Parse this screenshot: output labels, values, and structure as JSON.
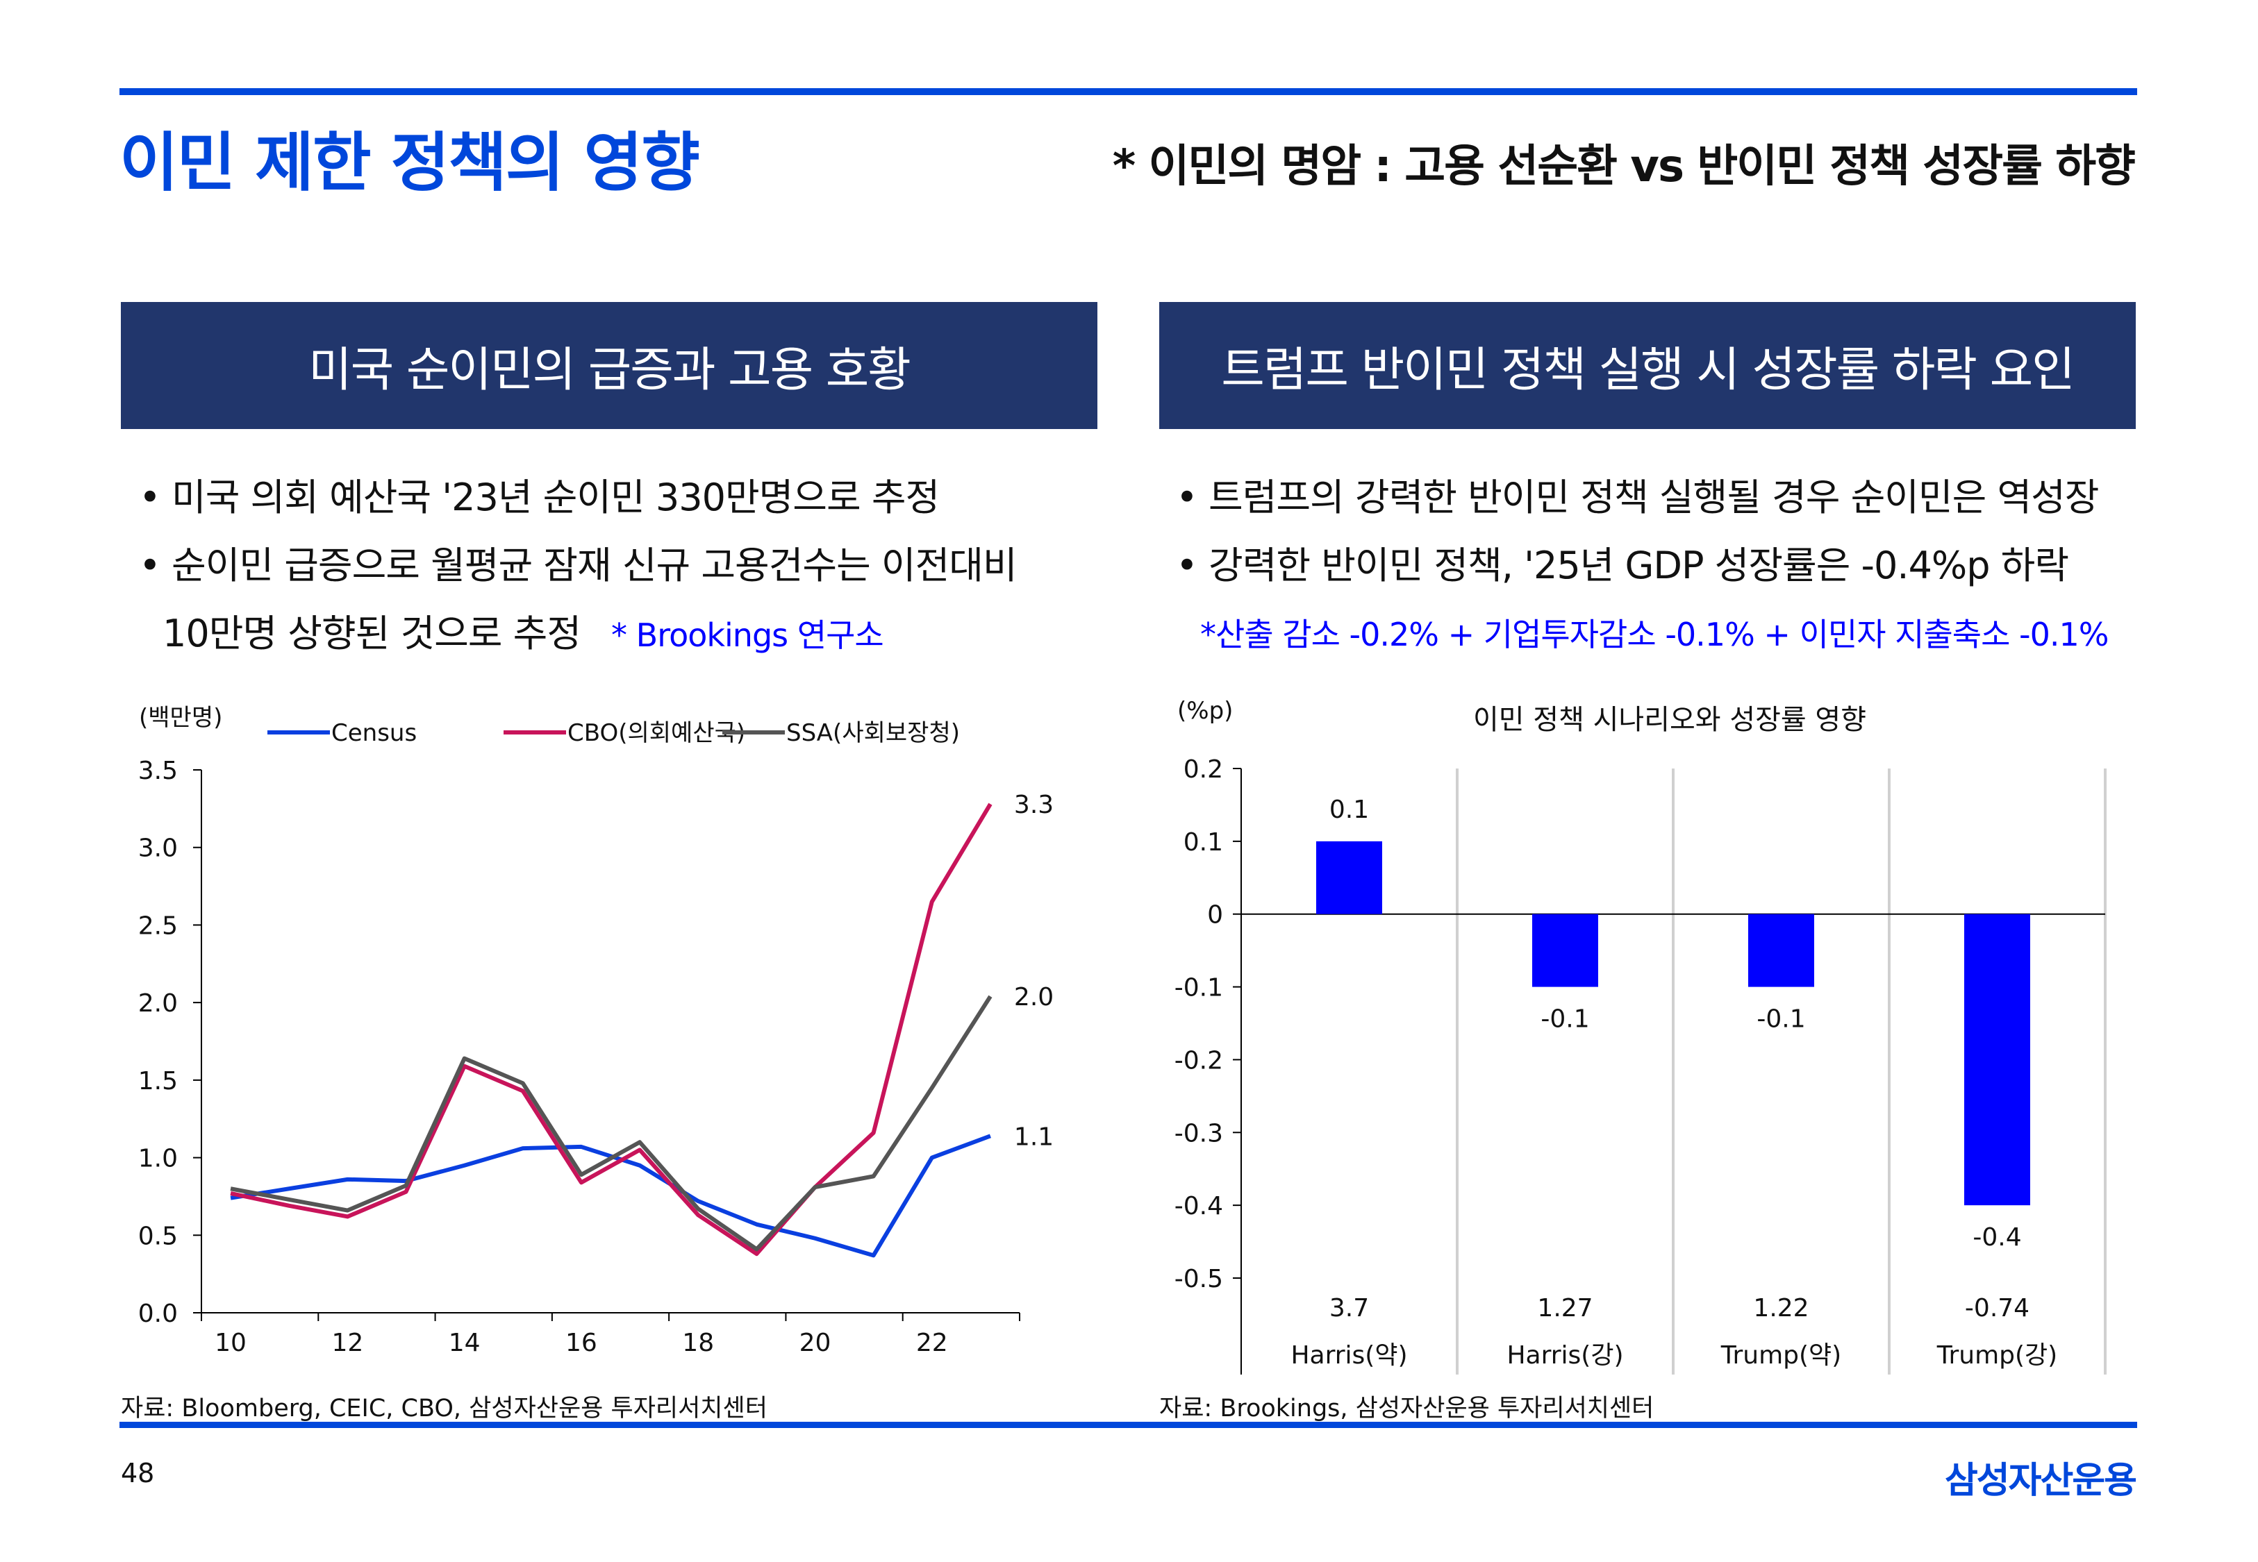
{
  "header": {
    "title": "이민 제한 정책의 영향",
    "subtitle": "* 이민의 명암 : 고용 선순환 vs 반이민 정책 성장률 하향"
  },
  "left_panel": {
    "heading": "미국 순이민의 급증과 고용 호황",
    "bullets": [
      "• 미국 의회 예산국 '23년 순이민 330만명으로 추정",
      "• 순이민 급증으로 월평균 잠재 신규 고용건수는 이전대비",
      "10만명 상향된 것으로 추정"
    ],
    "note": "* Brookings 연구소",
    "source": "자료: Bloomberg, CEIC, CBO, 삼성자산운용 투자리서치센터"
  },
  "right_panel": {
    "heading": "트럼프 반이민 정책 실행 시 성장률 하락 요인",
    "bullets": [
      "• 트럼프의 강력한 반이민 정책 실행될 경우 순이민은 역성장",
      "• 강력한 반이민 정책, '25년 GDP 성장률은 -0.4%p 하락"
    ],
    "note": "*산출 감소 -0.2% + 기업투자감소 -0.1% + 이민자 지출축소 -0.1%",
    "source": "자료: Brookings, 삼성자산운용 투자리서치센터"
  },
  "footer": {
    "page_number": "48",
    "logo_text": "삼성자산운용"
  },
  "colors": {
    "accent": "#0047DB",
    "panel_heading_bg": "#21366C",
    "census": "#0A3FE0",
    "cbo": "#C8145A",
    "ssa": "#555555",
    "bar": "#0000FF"
  },
  "chart_data": [
    {
      "type": "line",
      "unit_label": "(백만명)",
      "x": [
        10,
        11,
        12,
        13,
        14,
        15,
        16,
        17,
        18,
        19,
        20,
        21,
        22,
        23
      ],
      "x_tick_labels": [
        "10",
        "12",
        "14",
        "16",
        "18",
        "20",
        "22"
      ],
      "y_tick_labels": [
        "0.0",
        "0.5",
        "1.0",
        "1.5",
        "2.0",
        "2.5",
        "3.0",
        "3.5"
      ],
      "ylim": [
        0,
        3.5
      ],
      "legend_position": "top",
      "grid": false,
      "series": [
        {
          "name": "Census",
          "color": "#0A3FE0",
          "values": [
            0.74,
            0.8,
            0.86,
            0.85,
            0.95,
            1.06,
            1.07,
            0.95,
            0.72,
            0.57,
            0.48,
            0.37,
            1.0,
            1.14
          ],
          "end_label": "1.1"
        },
        {
          "name": "CBO(의회예산국)",
          "color": "#C8145A",
          "values": [
            0.77,
            0.69,
            0.62,
            0.78,
            1.59,
            1.43,
            0.84,
            1.05,
            0.63,
            0.38,
            0.81,
            1.16,
            2.65,
            3.28
          ],
          "end_label": "3.3"
        },
        {
          "name": "SSA(사회보장청)",
          "color": "#555555",
          "values": [
            0.8,
            0.73,
            0.66,
            0.82,
            1.64,
            1.48,
            0.89,
            1.1,
            0.67,
            0.41,
            0.81,
            0.88,
            1.45,
            2.04
          ],
          "end_label": "2.0"
        }
      ]
    },
    {
      "type": "bar",
      "title": "이민 정책 시나리오와 성장률 영향",
      "unit_label": "(%p)",
      "categories": [
        "Harris(약)",
        "Harris(강)",
        "Trump(약)",
        "Trump(강)"
      ],
      "category_sublabels": [
        "3.7",
        "1.27",
        "1.22",
        "-0.74"
      ],
      "values": [
        0.1,
        -0.1,
        -0.1,
        -0.4
      ],
      "data_labels": [
        "0.1",
        "-0.1",
        "-0.1",
        "-0.4"
      ],
      "y_tick_labels": [
        "0.2",
        "0.1",
        "0",
        "-0.1",
        "-0.2",
        "-0.3",
        "-0.4",
        "-0.5"
      ],
      "ylim": [
        -0.5,
        0.2
      ],
      "color": "#0000FF",
      "grid": false
    }
  ]
}
